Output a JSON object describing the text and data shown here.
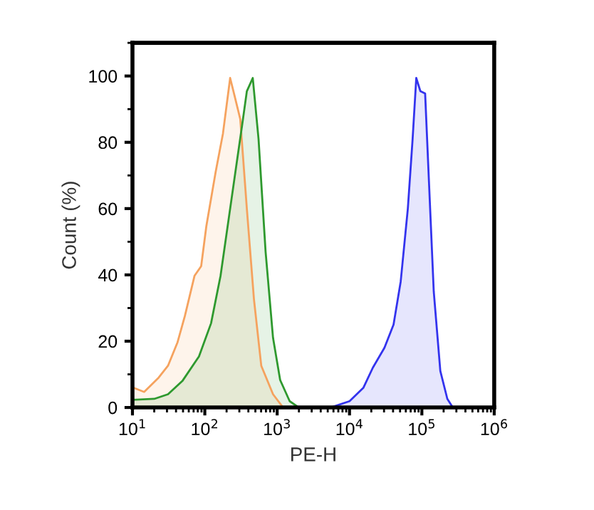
{
  "chart_data": {
    "type": "area",
    "xlabel": "PE-H",
    "ylabel": "Count (%)",
    "log": "x",
    "xlim": [
      10,
      1000000
    ],
    "xticks": [
      {
        "value": 10,
        "label": "10$^{1}$"
      },
      {
        "value": 100,
        "label": "10$^{2}$"
      },
      {
        "value": 1000,
        "label": "10$^{3}$"
      },
      {
        "value": 10000,
        "label": "10$^{4}$"
      },
      {
        "value": 100000,
        "label": "10$^{5}$"
      },
      {
        "value": 1000000,
        "label": "10$^{6}$"
      }
    ],
    "ylim": [
      0,
      110
    ],
    "yticks": [
      0,
      20,
      40,
      60,
      80,
      100
    ],
    "grid": false,
    "series": [
      {
        "color": "#f5a25e",
        "x": [
          10,
          14.5,
          23,
          31,
          42,
          53,
          72,
          89,
          105,
          141,
          178,
          224,
          258,
          309,
          381,
          478,
          603,
          877,
          1170
        ],
        "values": [
          6.1,
          4.7,
          9,
          12.6,
          19.7,
          27.6,
          39.7,
          42.6,
          54.7,
          71,
          82.6,
          99.4,
          94,
          87,
          60,
          32.6,
          12.6,
          4,
          0.4
        ]
      },
      {
        "color": "#2e992e",
        "x": [
          10,
          20,
          31,
          49,
          83,
          122,
          165,
          224,
          281,
          327,
          381,
          460,
          553,
          692,
          877,
          1100,
          1490,
          1990
        ],
        "values": [
          2.3,
          2.6,
          4,
          8,
          15.4,
          25.4,
          39.7,
          60,
          75,
          85,
          95.4,
          99.4,
          81,
          47,
          21,
          8.3,
          1.9,
          0
        ]
      },
      {
        "color": "#3333ee",
        "x": [
          5500,
          10000,
          15600,
          21000,
          30400,
          40600,
          51000,
          64000,
          74500,
          83700,
          95500,
          111000,
          126000,
          146000,
          180000,
          225000,
          268000
        ],
        "values": [
          0,
          1.9,
          6,
          12,
          18,
          25,
          38,
          60,
          81,
          99.4,
          95.4,
          94.7,
          67,
          35,
          11,
          2.6,
          0
        ]
      }
    ]
  }
}
